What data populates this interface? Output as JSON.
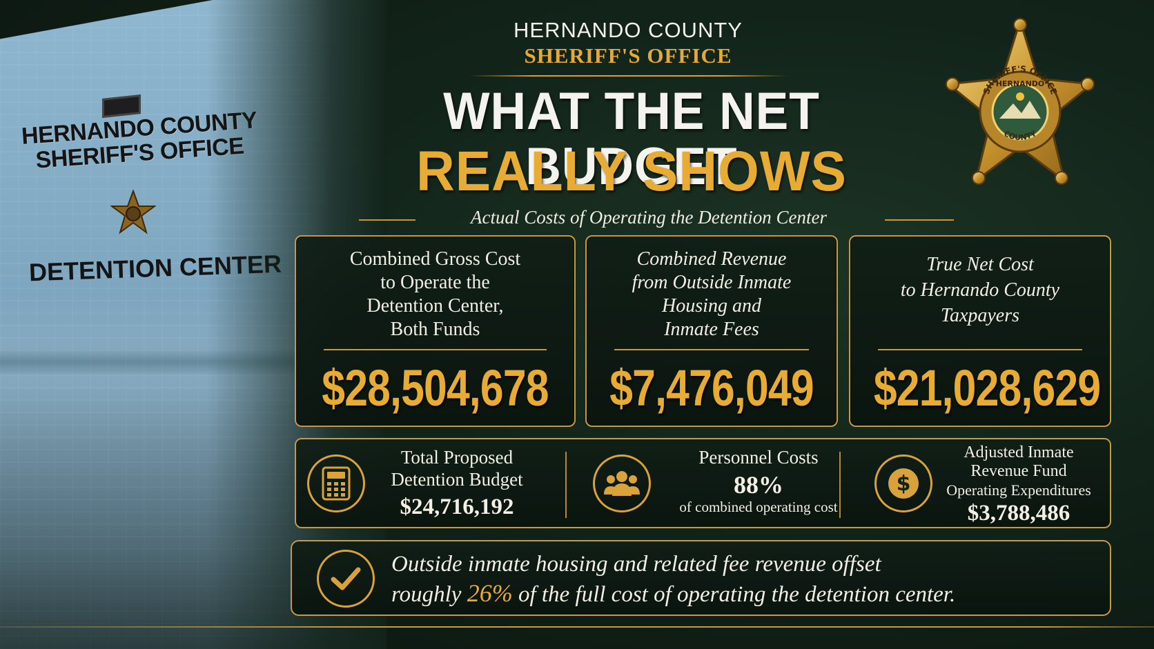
{
  "header": {
    "county": "HERNANDO COUNTY",
    "office": "SHERIFF'S OFFICE",
    "title_line1": "WHAT THE NET BUDGET",
    "title_line2": "REALLY SHOWS",
    "subtitle": "Actual Costs of Operating the Detention Center"
  },
  "wall_sign": {
    "line1": "HERNANDO COUNTY",
    "line2": "SHERIFF'S OFFICE",
    "line3": "DETENTION CENTER"
  },
  "badge": {
    "icon": "sheriff-star-badge-icon",
    "ring_text_top": "SHERIFF'S OFFICE",
    "ring_text_mid": "HERNANDO",
    "ring_text_bottom": "COUNTY"
  },
  "cards": [
    {
      "label_lines": [
        "Combined Gross Cost",
        "to Operate the",
        "Detention Center,",
        "Both Funds"
      ],
      "amount": "$28,504,678"
    },
    {
      "label_lines": [
        "Combined Revenue",
        "from Outside Inmate",
        "Housing and",
        "Inmate Fees"
      ],
      "amount": "$7,476,049"
    },
    {
      "label_lines": [
        "True Net Cost",
        "to Hernando County",
        "Taxpayers"
      ],
      "amount": "$21,028,629"
    }
  ],
  "stats": [
    {
      "icon": "calculator-icon",
      "label_lines": [
        "Total Proposed",
        "Detention Budget"
      ],
      "value": "$24,716,192"
    },
    {
      "icon": "people-group-icon",
      "label": "Personnel Costs",
      "value": "88%",
      "note": "of combined operating cost"
    },
    {
      "icon": "dollar-coin-icon",
      "label_lines": [
        "Adjusted Inmate",
        "Revenue Fund",
        "Operating Expenditures"
      ],
      "value": "$3,788,486"
    }
  ],
  "banner": {
    "icon": "checkmark-icon",
    "line1": "Outside inmate housing and related fee revenue offset",
    "line2_pre": "roughly ",
    "line2_highlight": "26%",
    "line2_post": " of the full cost of operating the detention center."
  },
  "colors": {
    "gold": "#e8ac34",
    "border_gold": "#c89a3e",
    "background": "#12241a",
    "text_light": "#f3efe4"
  }
}
